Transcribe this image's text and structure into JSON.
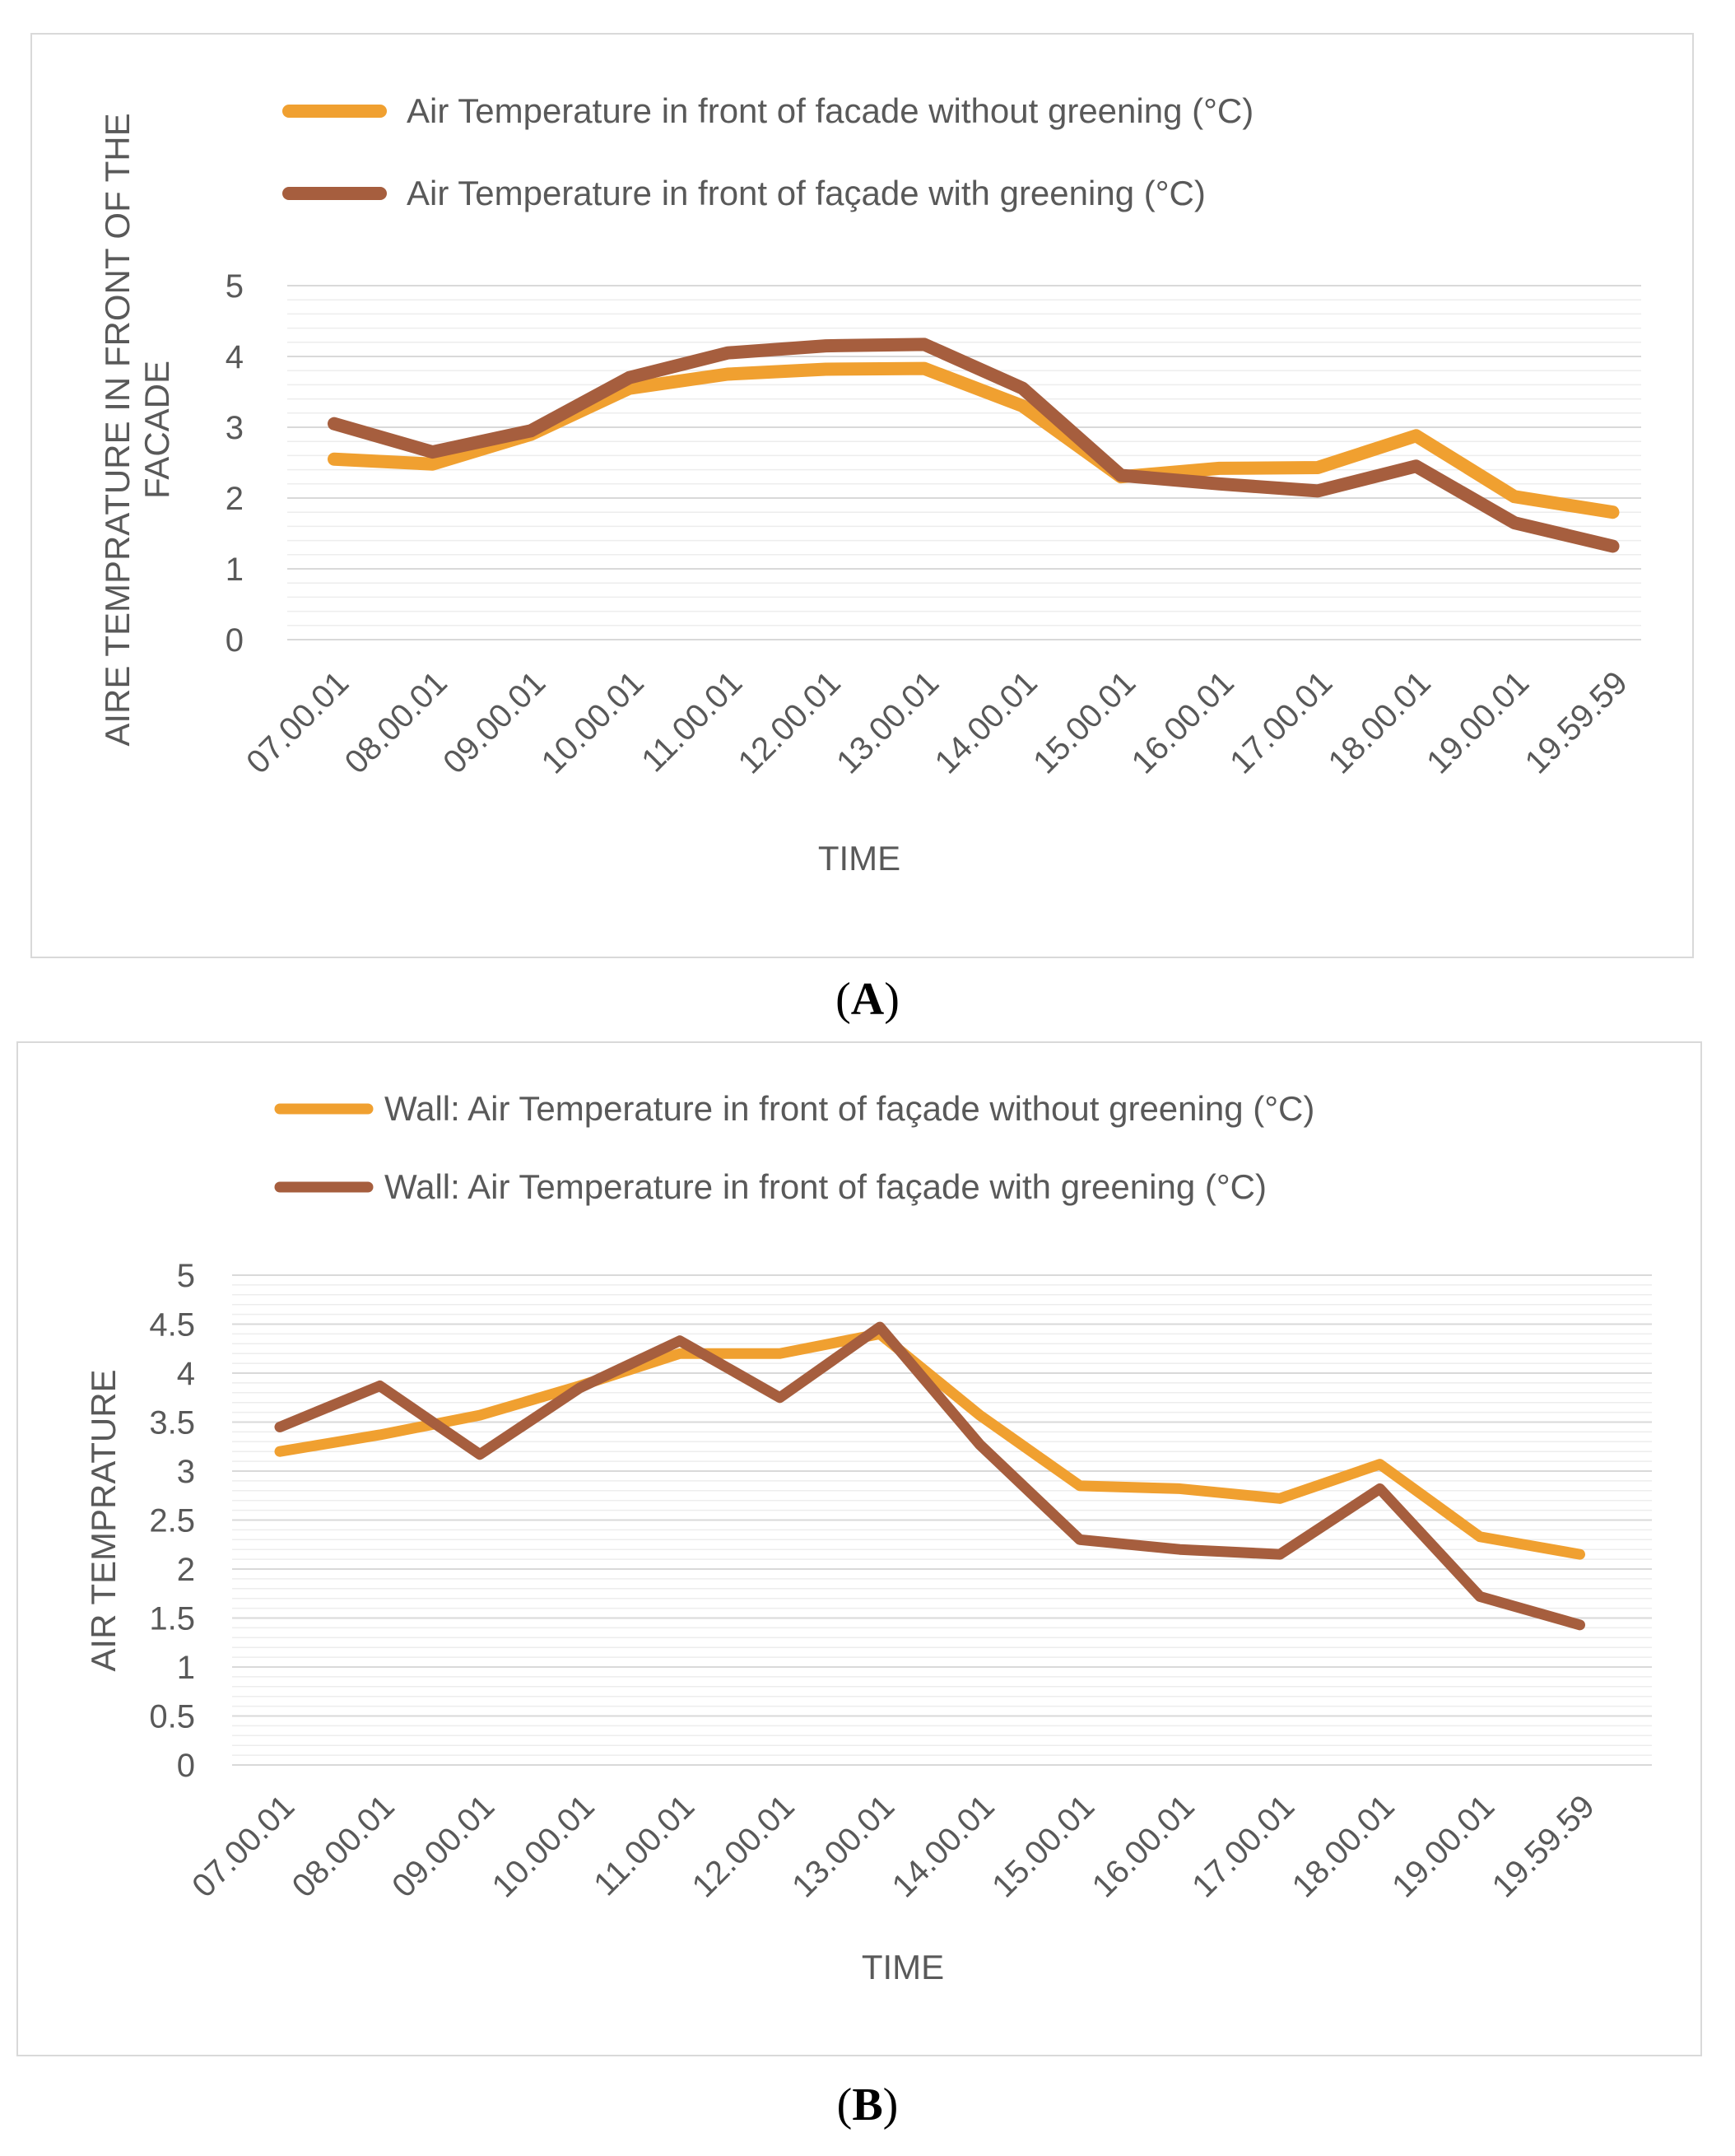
{
  "chart_data": [
    {
      "type": "line",
      "panel_label": "A",
      "xlabel": "TIME",
      "ylabel_lines": [
        "AIRE TEMPRATURE IN FRONT OF THE",
        "FACADE"
      ],
      "ylim": [
        0,
        5
      ],
      "y_ticks": [
        "0",
        "1",
        "2",
        "3",
        "4",
        "5"
      ],
      "minor_gridlines": true,
      "legend_position": "top",
      "categories": [
        "07.00.01",
        "08.00.01",
        "09.00.01",
        "10.00.01",
        "11.00.01",
        "12.00.01",
        "13.00.01",
        "14.00.01",
        "15.00.01",
        "16.00.01",
        "17.00.01",
        "18.00.01",
        "19.00.01",
        "19.59.59"
      ],
      "series": [
        {
          "name": "Air Temperature in front of facade without greening (°C)",
          "color": "#F0A030",
          "values": [
            2.55,
            2.48,
            2.9,
            3.55,
            3.75,
            3.82,
            3.83,
            3.3,
            2.3,
            2.42,
            2.43,
            2.88,
            2.02,
            1.8
          ]
        },
        {
          "name": "Air Temperature in front of façade with greening  (°C)",
          "color": "#A65E3E",
          "values": [
            3.05,
            2.65,
            2.95,
            3.7,
            4.05,
            4.15,
            4.17,
            3.55,
            2.32,
            2.2,
            2.1,
            2.45,
            1.65,
            1.32
          ]
        }
      ]
    },
    {
      "type": "line",
      "panel_label": "B",
      "xlabel": "TIME",
      "ylabel_lines": [
        "AIR TEMPRATURE"
      ],
      "ylim": [
        0,
        5
      ],
      "y_ticks": [
        "0",
        "0.5",
        "1",
        "1.5",
        "2",
        "2.5",
        "3",
        "3.5",
        "4",
        "4.5",
        "5"
      ],
      "minor_gridlines": true,
      "legend_position": "top",
      "categories": [
        "07.00.01",
        "08.00.01",
        "09.00.01",
        "10.00.01",
        "11.00.01",
        "12.00.01",
        "13.00.01",
        "14.00.01",
        "15.00.01",
        "16.00.01",
        "17.00.01",
        "18.00.01",
        "19.00.01",
        "19.59.59"
      ],
      "series": [
        {
          "name": "Wall: Air Temperature in front of façade without greening  (°C)",
          "color": "#F0A030",
          "values": [
            3.2,
            3.37,
            3.57,
            3.87,
            4.2,
            4.2,
            4.4,
            3.57,
            2.85,
            2.82,
            2.72,
            3.07,
            2.33,
            2.15
          ]
        },
        {
          "name": "Wall: Air Temperature in front of façade with greening  (°C)",
          "color": "#A65E3E",
          "values": [
            3.45,
            3.87,
            3.17,
            3.85,
            4.33,
            3.75,
            4.47,
            3.27,
            2.3,
            2.2,
            2.15,
            2.82,
            1.72,
            1.43
          ]
        }
      ]
    }
  ]
}
